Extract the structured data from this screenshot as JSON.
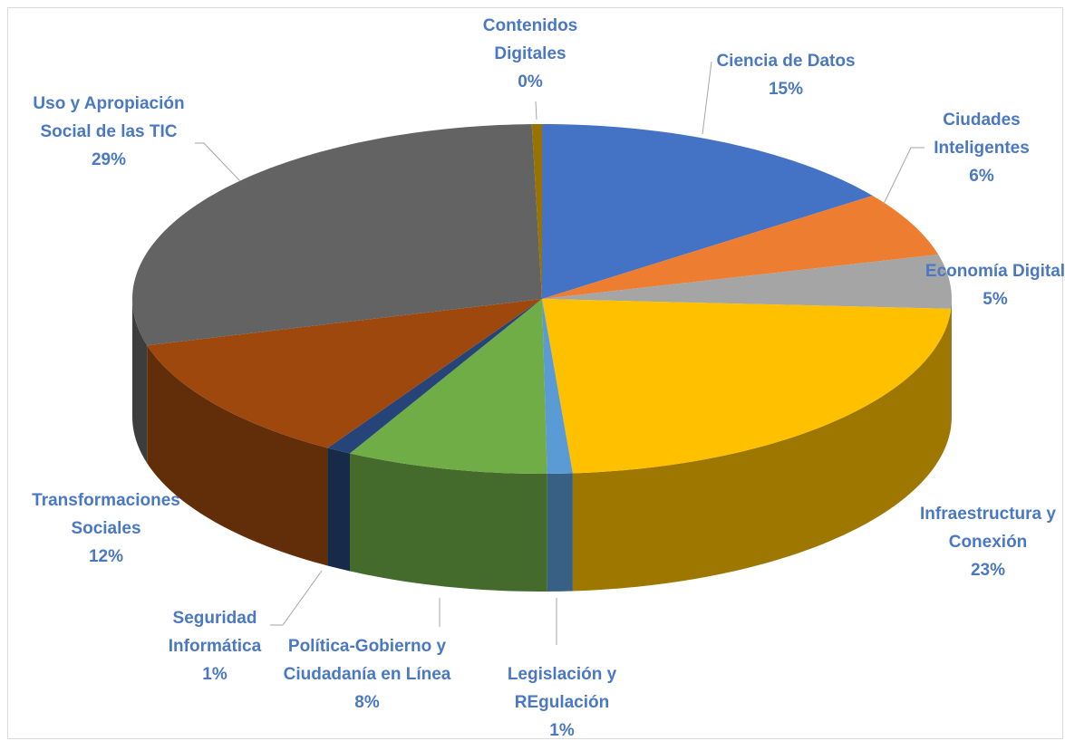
{
  "chart_data": {
    "type": "pie3d",
    "categories": [
      "Ciencia de Datos",
      "Ciudades Inteligentes",
      "Economía Digital",
      "Infraestructura y Conexión",
      "Legislación y REgulación",
      "Política-Gobierno y Ciudadanía en Línea",
      "Seguridad Informática",
      "Transformaciones Sociales",
      "Uso y Apropiación Social de las TIC",
      "Contenidos Digitales"
    ],
    "values": [
      15,
      6,
      5,
      23,
      1,
      8,
      1,
      12,
      29,
      0.4
    ],
    "value_labels": [
      "15%",
      "6%",
      "5%",
      "23%",
      "1%",
      "8%",
      "1%",
      "12%",
      "29%",
      "0%"
    ],
    "colors": [
      "#4472c4",
      "#ed7d31",
      "#a5a5a5",
      "#ffc000",
      "#5b9bd5",
      "#70ad47",
      "#264478",
      "#9e480e",
      "#636363",
      "#997300"
    ]
  }
}
